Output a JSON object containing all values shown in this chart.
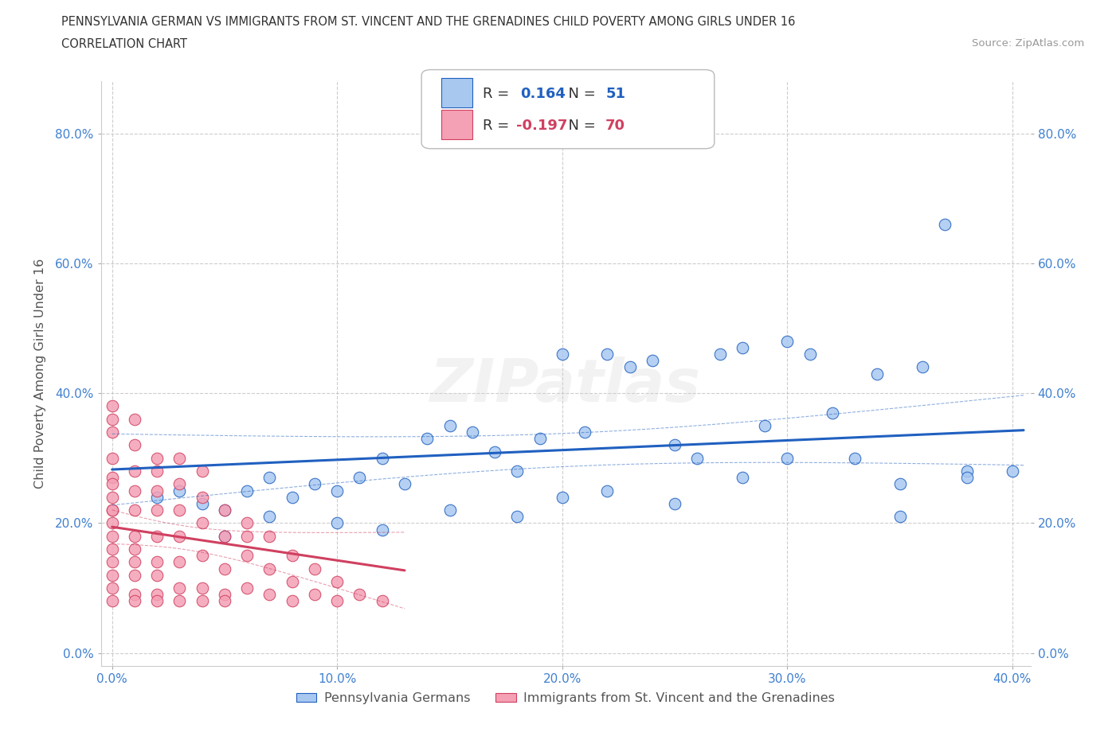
{
  "title_line1": "PENNSYLVANIA GERMAN VS IMMIGRANTS FROM ST. VINCENT AND THE GRENADINES CHILD POVERTY AMONG GIRLS UNDER 16",
  "title_line2": "CORRELATION CHART",
  "source_text": "Source: ZipAtlas.com",
  "ylabel": "Child Poverty Among Girls Under 16",
  "r_blue": 0.164,
  "n_blue": 51,
  "r_pink": -0.197,
  "n_pink": 70,
  "blue_color": "#a8c8f0",
  "blue_line_color": "#2060c0",
  "pink_color": "#f4a0b5",
  "pink_line_color": "#d04060",
  "blue_scatter_x": [
    0.02,
    0.03,
    0.04,
    0.05,
    0.05,
    0.06,
    0.07,
    0.08,
    0.09,
    0.1,
    0.11,
    0.12,
    0.13,
    0.14,
    0.15,
    0.16,
    0.17,
    0.18,
    0.19,
    0.2,
    0.21,
    0.22,
    0.23,
    0.24,
    0.25,
    0.26,
    0.27,
    0.28,
    0.29,
    0.3,
    0.31,
    0.32,
    0.33,
    0.34,
    0.35,
    0.36,
    0.37,
    0.38,
    0.07,
    0.1,
    0.12,
    0.15,
    0.18,
    0.2,
    0.22,
    0.25,
    0.28,
    0.3,
    0.35,
    0.38,
    0.4
  ],
  "blue_scatter_y": [
    0.24,
    0.25,
    0.23,
    0.22,
    0.18,
    0.25,
    0.27,
    0.24,
    0.26,
    0.25,
    0.27,
    0.3,
    0.26,
    0.33,
    0.35,
    0.34,
    0.31,
    0.28,
    0.33,
    0.46,
    0.34,
    0.46,
    0.44,
    0.45,
    0.32,
    0.3,
    0.46,
    0.47,
    0.35,
    0.48,
    0.46,
    0.37,
    0.3,
    0.43,
    0.26,
    0.44,
    0.66,
    0.28,
    0.21,
    0.2,
    0.19,
    0.22,
    0.21,
    0.24,
    0.25,
    0.23,
    0.27,
    0.3,
    0.21,
    0.27,
    0.28
  ],
  "pink_scatter_x": [
    0.0,
    0.0,
    0.0,
    0.0,
    0.0,
    0.0,
    0.0,
    0.0,
    0.0,
    0.0,
    0.0,
    0.0,
    0.0,
    0.0,
    0.0,
    0.01,
    0.01,
    0.01,
    0.01,
    0.01,
    0.01,
    0.01,
    0.01,
    0.01,
    0.02,
    0.02,
    0.02,
    0.02,
    0.02,
    0.02,
    0.02,
    0.03,
    0.03,
    0.03,
    0.03,
    0.03,
    0.04,
    0.04,
    0.04,
    0.04,
    0.05,
    0.05,
    0.05,
    0.05,
    0.06,
    0.06,
    0.06,
    0.07,
    0.07,
    0.07,
    0.08,
    0.08,
    0.08,
    0.09,
    0.09,
    0.1,
    0.1,
    0.11,
    0.12,
    0.0,
    0.01,
    0.02,
    0.01,
    0.02,
    0.03,
    0.04,
    0.05,
    0.03,
    0.04,
    0.06
  ],
  "pink_scatter_y": [
    0.38,
    0.34,
    0.3,
    0.27,
    0.24,
    0.22,
    0.2,
    0.18,
    0.16,
    0.14,
    0.12,
    0.1,
    0.08,
    0.22,
    0.26,
    0.36,
    0.28,
    0.25,
    0.22,
    0.18,
    0.16,
    0.14,
    0.12,
    0.09,
    0.3,
    0.25,
    0.22,
    0.18,
    0.14,
    0.12,
    0.09,
    0.26,
    0.22,
    0.18,
    0.14,
    0.1,
    0.24,
    0.2,
    0.15,
    0.1,
    0.22,
    0.18,
    0.13,
    0.09,
    0.2,
    0.15,
    0.1,
    0.18,
    0.13,
    0.09,
    0.15,
    0.11,
    0.08,
    0.13,
    0.09,
    0.11,
    0.08,
    0.09,
    0.08,
    0.36,
    0.32,
    0.28,
    0.08,
    0.08,
    0.08,
    0.08,
    0.08,
    0.3,
    0.28,
    0.18
  ],
  "xlim": [
    -0.005,
    0.408
  ],
  "ylim": [
    -0.02,
    0.88
  ],
  "xticks": [
    0.0,
    0.1,
    0.2,
    0.3,
    0.4
  ],
  "yticks": [
    0.0,
    0.2,
    0.4,
    0.6,
    0.8
  ],
  "legend_label_blue": "Pennsylvania Germans",
  "legend_label_pink": "Immigrants from St. Vincent and the Grenadines",
  "watermark": "ZIPatlas",
  "bg_color": "#ffffff",
  "grid_color": "#c8c8c8",
  "tick_color": "#4080d0",
  "axis_label_color": "#555555"
}
